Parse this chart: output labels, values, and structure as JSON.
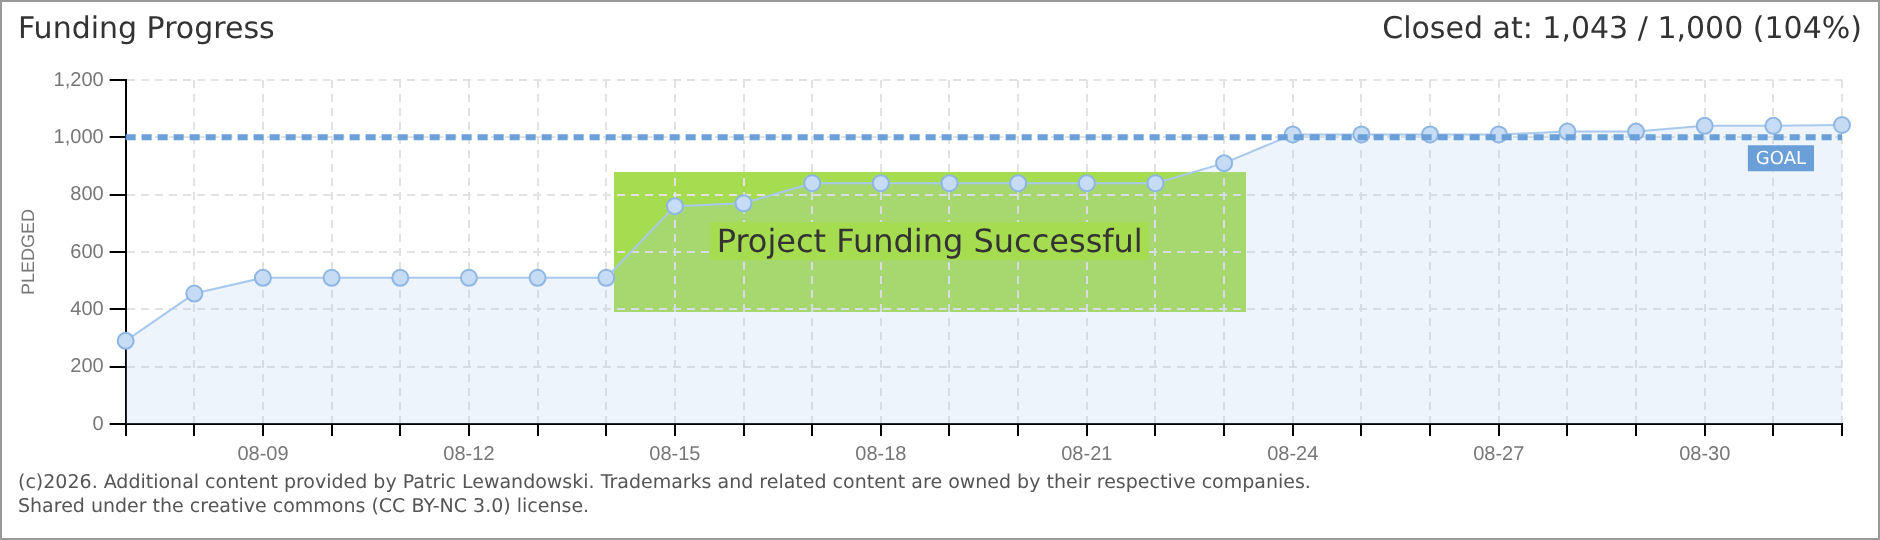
{
  "chart_data": {
    "type": "area",
    "title": "Funding Progress",
    "ylabel": "PLEDGED",
    "categories": [
      null,
      null,
      "08-09",
      null,
      null,
      "08-12",
      null,
      null,
      "08-15",
      null,
      null,
      "08-18",
      null,
      null,
      "08-21",
      null,
      null,
      "08-24",
      null,
      null,
      "08-27",
      null,
      null,
      "08-30",
      null,
      null
    ],
    "series": [
      {
        "color": "#a8c8ec",
        "values": [
          290,
          455,
          510,
          510,
          510,
          510,
          510,
          510,
          760,
          770,
          840,
          840,
          840,
          840,
          840,
          840,
          910,
          1010,
          1010,
          1010,
          1010,
          1020,
          1020,
          1040,
          1040,
          1043
        ]
      }
    ],
    "ylim": [
      0,
      1200
    ],
    "yticks": [
      0,
      {
        "value": 200,
        "label": "200"
      },
      {
        "value": 400,
        "label": "400"
      },
      {
        "value": 600,
        "label": "600"
      },
      {
        "value": 800,
        "label": "800"
      },
      {
        "value": 1000,
        "label": "1,000"
      },
      {
        "value": 1200,
        "label": "1,200"
      }
    ],
    "grid": true,
    "legend": false,
    "marker": "circle",
    "line_style": "solid",
    "ref_lines": [
      {
        "axis": "y",
        "value": 1000,
        "label": "GOAL",
        "color": "#6a9fd8",
        "line_style": "dashed"
      }
    ],
    "annotations": [
      "Closed at:  1,043 /  1,000 (104%)",
      "Project Funding Successful",
      "(c)2026. Additional content provided by Patric Lewandowski. Trademarks and related content are owned by their respective companies.",
      "Shared under the creative commons (CC BY-NC 3.0) license."
    ]
  }
}
